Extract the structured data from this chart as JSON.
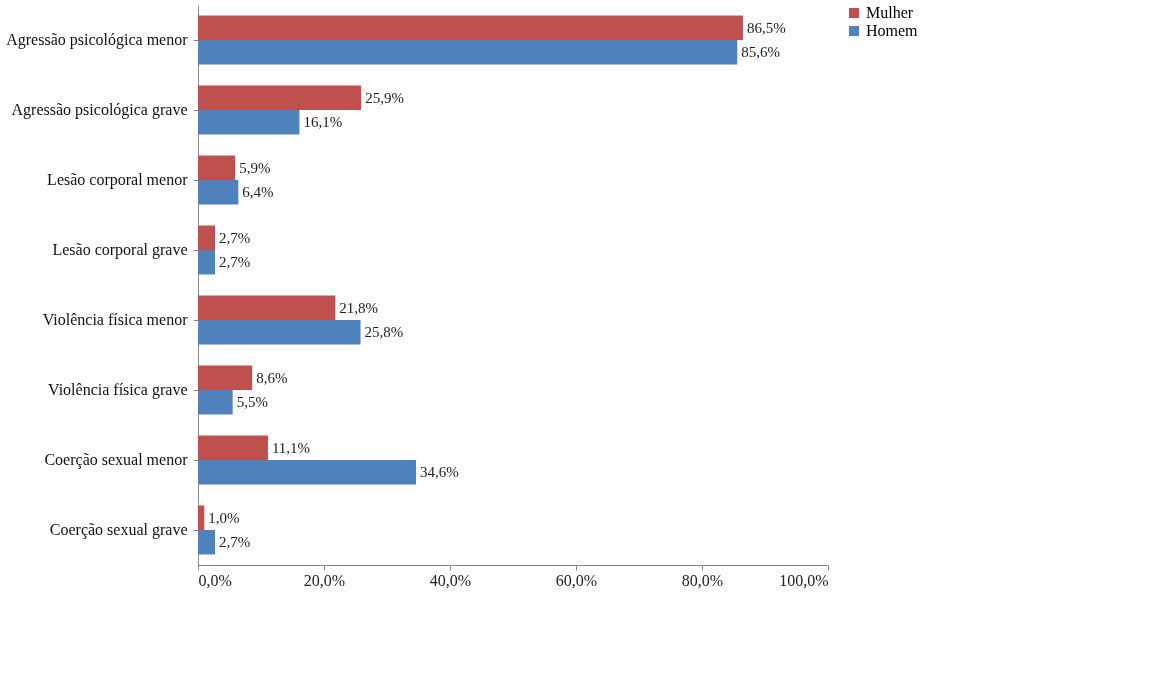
{
  "chart_data": {
    "type": "bar",
    "orientation": "horizontal",
    "categories": [
      "Agressão psicológica menor",
      "Agressão psicológica grave",
      "Lesão corporal menor",
      "Lesão corporal grave",
      "Violência física menor",
      "Violência física grave",
      "Coerção sexual menor",
      "Coerção sexual grave"
    ],
    "series": [
      {
        "name": "Mulher",
        "color": "#c0504d",
        "values": [
          86.5,
          25.9,
          5.9,
          2.7,
          21.8,
          8.6,
          11.1,
          1.0
        ],
        "value_labels": [
          "86,5%",
          "25,9%",
          "5,9%",
          "2,7%",
          "21,8%",
          "8,6%",
          "11,1%",
          "1,0%"
        ]
      },
      {
        "name": "Homem",
        "color": "#4f81bd",
        "values": [
          85.6,
          16.1,
          6.4,
          2.7,
          25.8,
          5.5,
          34.6,
          2.7
        ],
        "value_labels": [
          "85,6%",
          "16,1%",
          "6,4%",
          "2,7%",
          "25,8%",
          "5,5%",
          "34,6%",
          "2,7%"
        ]
      }
    ],
    "xlim": [
      0,
      100
    ],
    "xticks": [
      {
        "value": 0,
        "label": "0,0%"
      },
      {
        "value": 20,
        "label": "20,0%"
      },
      {
        "value": 40,
        "label": "40,0%"
      },
      {
        "value": 60,
        "label": "60,0%"
      },
      {
        "value": 80,
        "label": "80,0%"
      },
      {
        "value": 100,
        "label": "100,0%"
      }
    ],
    "grid": false,
    "legend": "right"
  }
}
